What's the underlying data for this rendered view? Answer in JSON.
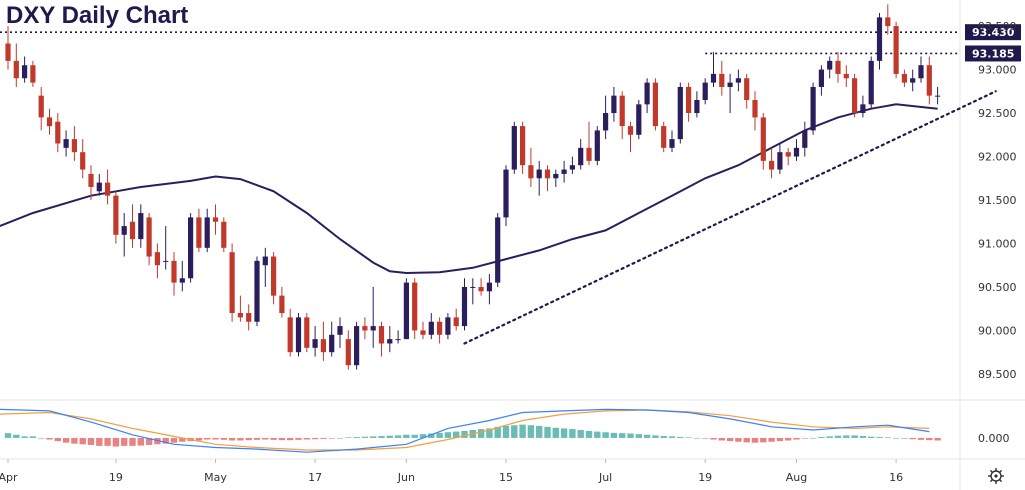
{
  "chart_data": {
    "type": "candlestick",
    "title": "DXY Daily Chart",
    "colors": {
      "up": "#2a1f5c",
      "down": "#c0392b",
      "ma": "#2a1f5c",
      "macd": "#3b82f6",
      "signal": "#f59e42",
      "hist_pos": "#3aa69b",
      "hist_neg": "#e05a5a"
    },
    "y_axis": {
      "ylim": [
        89.2,
        93.8
      ],
      "ticks": [
        "89.500",
        "90.000",
        "90.500",
        "91.000",
        "91.500",
        "92.000",
        "92.500",
        "93.000",
        "93.500"
      ]
    },
    "x_axis": {
      "ticks": [
        "Apr",
        "19",
        "May",
        "17",
        "Jun",
        "15",
        "Jul",
        "19",
        "Aug",
        "16"
      ],
      "tick_index": [
        0,
        13,
        25,
        37,
        48,
        60,
        72,
        84,
        95,
        107
      ]
    },
    "levels": [
      {
        "label": "93.430",
        "value": 93.43
      },
      {
        "label": "93.185",
        "value": 93.185
      }
    ],
    "trendline": {
      "from": [
        55,
        89.85
      ],
      "to": [
        119,
        92.75
      ]
    },
    "candles": [
      [
        93.3,
        93.1,
        93.5,
        93.0
      ],
      [
        93.1,
        92.9,
        93.3,
        92.8
      ],
      [
        92.9,
        93.05,
        93.15,
        92.85
      ],
      [
        93.05,
        92.85,
        93.1,
        92.8
      ],
      [
        92.7,
        92.45,
        92.8,
        92.3
      ],
      [
        92.45,
        92.35,
        92.55,
        92.25
      ],
      [
        92.4,
        92.15,
        92.5,
        92.05
      ],
      [
        92.1,
        92.2,
        92.3,
        92.0
      ],
      [
        92.2,
        92.05,
        92.35,
        91.95
      ],
      [
        92.05,
        91.85,
        92.2,
        91.75
      ],
      [
        91.8,
        91.65,
        91.9,
        91.5
      ],
      [
        91.6,
        91.7,
        91.8,
        91.55
      ],
      [
        91.7,
        91.55,
        91.85,
        91.45
      ],
      [
        91.55,
        91.1,
        91.6,
        91.0
      ],
      [
        91.1,
        91.2,
        91.35,
        90.85
      ],
      [
        91.25,
        91.05,
        91.45,
        90.95
      ],
      [
        91.05,
        91.35,
        91.45,
        90.95
      ],
      [
        91.3,
        90.85,
        91.35,
        90.75
      ],
      [
        90.9,
        90.75,
        91.0,
        90.6
      ],
      [
        90.8,
        90.8,
        91.2,
        90.7
      ],
      [
        90.8,
        90.55,
        90.9,
        90.4
      ],
      [
        90.55,
        90.6,
        90.8,
        90.45
      ],
      [
        90.6,
        91.3,
        91.35,
        90.55
      ],
      [
        91.3,
        90.95,
        91.4,
        90.9
      ],
      [
        90.95,
        91.3,
        91.4,
        90.9
      ],
      [
        91.3,
        91.25,
        91.45,
        91.1
      ],
      [
        91.25,
        90.95,
        91.3,
        90.9
      ],
      [
        90.9,
        90.2,
        91.0,
        90.1
      ],
      [
        90.2,
        90.15,
        90.4,
        90.1
      ],
      [
        90.2,
        90.1,
        90.3,
        90.0
      ],
      [
        90.1,
        90.8,
        90.85,
        90.05
      ],
      [
        90.75,
        90.85,
        90.95,
        90.5
      ],
      [
        90.85,
        90.4,
        90.9,
        90.3
      ],
      [
        90.4,
        90.2,
        90.5,
        90.15
      ],
      [
        90.15,
        89.75,
        90.25,
        89.7
      ],
      [
        89.75,
        90.15,
        90.2,
        89.7
      ],
      [
        90.15,
        89.8,
        90.2,
        89.75
      ],
      [
        89.8,
        89.9,
        90.05,
        89.7
      ],
      [
        89.9,
        89.75,
        90.1,
        89.65
      ],
      [
        89.75,
        89.95,
        90.1,
        89.7
      ],
      [
        89.95,
        90.05,
        90.15,
        89.8
      ],
      [
        89.9,
        89.6,
        90.0,
        89.55
      ],
      [
        89.6,
        90.05,
        90.1,
        89.55
      ],
      [
        90.05,
        90.0,
        90.15,
        89.9
      ],
      [
        90.0,
        90.05,
        90.5,
        89.8
      ],
      [
        90.05,
        89.85,
        90.1,
        89.7
      ],
      [
        89.85,
        89.9,
        90.05,
        89.75
      ],
      [
        89.9,
        89.9,
        90.0,
        89.85
      ],
      [
        89.9,
        90.55,
        90.6,
        89.9
      ],
      [
        90.55,
        90.0,
        90.6,
        89.9
      ],
      [
        90.0,
        89.95,
        90.1,
        89.9
      ],
      [
        89.95,
        90.1,
        90.2,
        89.9
      ],
      [
        90.1,
        89.95,
        90.15,
        89.85
      ],
      [
        89.95,
        90.15,
        90.2,
        89.9
      ],
      [
        90.15,
        90.05,
        90.25,
        90.0
      ],
      [
        90.05,
        90.5,
        90.6,
        90.0
      ],
      [
        90.5,
        90.5,
        90.6,
        90.3
      ],
      [
        90.5,
        90.45,
        90.6,
        90.4
      ],
      [
        90.45,
        90.55,
        90.65,
        90.3
      ],
      [
        90.55,
        91.3,
        91.35,
        90.5
      ],
      [
        91.3,
        91.85,
        91.9,
        91.2
      ],
      [
        91.85,
        92.35,
        92.4,
        91.8
      ],
      [
        92.35,
        91.9,
        92.4,
        91.8
      ],
      [
        91.9,
        91.75,
        92.1,
        91.65
      ],
      [
        91.75,
        91.85,
        91.95,
        91.55
      ],
      [
        91.85,
        91.75,
        91.9,
        91.6
      ],
      [
        91.75,
        91.8,
        91.85,
        91.65
      ],
      [
        91.8,
        91.85,
        91.95,
        91.7
      ],
      [
        91.85,
        91.9,
        92.0,
        91.8
      ],
      [
        91.9,
        92.1,
        92.2,
        91.85
      ],
      [
        92.1,
        91.95,
        92.4,
        91.9
      ],
      [
        91.95,
        92.3,
        92.35,
        91.9
      ],
      [
        92.3,
        92.5,
        92.7,
        92.2
      ],
      [
        92.5,
        92.7,
        92.8,
        92.4
      ],
      [
        92.7,
        92.35,
        92.75,
        92.2
      ],
      [
        92.35,
        92.25,
        92.4,
        92.05
      ],
      [
        92.25,
        92.6,
        92.65,
        92.2
      ],
      [
        92.6,
        92.85,
        92.9,
        92.5
      ],
      [
        92.85,
        92.35,
        92.9,
        92.3
      ],
      [
        92.35,
        92.1,
        92.4,
        92.05
      ],
      [
        92.1,
        92.2,
        92.3,
        92.05
      ],
      [
        92.2,
        92.8,
        92.85,
        92.15
      ],
      [
        92.8,
        92.5,
        92.85,
        92.4
      ],
      [
        92.5,
        92.65,
        92.75,
        92.45
      ],
      [
        92.65,
        92.85,
        92.9,
        92.6
      ],
      [
        92.85,
        92.95,
        93.2,
        92.8
      ],
      [
        92.95,
        92.8,
        93.1,
        92.7
      ],
      [
        92.8,
        92.85,
        92.95,
        92.5
      ],
      [
        92.85,
        92.9,
        93.0,
        92.75
      ],
      [
        92.9,
        92.65,
        92.95,
        92.55
      ],
      [
        92.65,
        92.45,
        92.75,
        92.3
      ],
      [
        92.45,
        91.95,
        92.5,
        91.85
      ],
      [
        91.95,
        91.85,
        92.1,
        91.75
      ],
      [
        91.85,
        92.05,
        92.15,
        91.8
      ],
      [
        92.05,
        92.0,
        92.1,
        91.9
      ],
      [
        92.0,
        92.1,
        92.2,
        91.95
      ],
      [
        92.1,
        92.3,
        92.4,
        92.0
      ],
      [
        92.3,
        92.8,
        92.85,
        92.25
      ],
      [
        92.8,
        93.0,
        93.05,
        92.7
      ],
      [
        93.0,
        93.1,
        93.15,
        92.9
      ],
      [
        93.1,
        92.95,
        93.2,
        92.85
      ],
      [
        92.95,
        92.9,
        93.05,
        92.8
      ],
      [
        92.9,
        92.5,
        92.95,
        92.45
      ],
      [
        92.5,
        92.6,
        92.7,
        92.45
      ],
      [
        92.6,
        93.1,
        93.15,
        92.55
      ],
      [
        93.1,
        93.6,
        93.65,
        93.0
      ],
      [
        93.6,
        93.5,
        93.75,
        93.4
      ],
      [
        93.5,
        92.95,
        93.55,
        92.9
      ],
      [
        92.95,
        92.85,
        93.0,
        92.8
      ],
      [
        92.85,
        92.9,
        93.0,
        92.75
      ],
      [
        92.9,
        93.05,
        93.15,
        92.85
      ],
      [
        93.05,
        92.7,
        93.15,
        92.6
      ],
      [
        92.7,
        92.7,
        92.8,
        92.6
      ]
    ],
    "ma": [
      [
        -1,
        91.2
      ],
      [
        3,
        91.35
      ],
      [
        10,
        91.55
      ],
      [
        16,
        91.65
      ],
      [
        22,
        91.72
      ],
      [
        25,
        91.77
      ],
      [
        28,
        91.74
      ],
      [
        32,
        91.6
      ],
      [
        36,
        91.35
      ],
      [
        40,
        91.05
      ],
      [
        44,
        90.78
      ],
      [
        46,
        90.68
      ],
      [
        48,
        90.66
      ],
      [
        52,
        90.67
      ],
      [
        56,
        90.72
      ],
      [
        60,
        90.82
      ],
      [
        64,
        90.92
      ],
      [
        68,
        91.05
      ],
      [
        72,
        91.15
      ],
      [
        76,
        91.35
      ],
      [
        80,
        91.55
      ],
      [
        84,
        91.75
      ],
      [
        88,
        91.9
      ],
      [
        92,
        92.1
      ],
      [
        96,
        92.3
      ],
      [
        100,
        92.45
      ],
      [
        104,
        92.55
      ],
      [
        107,
        92.6
      ],
      [
        112,
        92.55
      ]
    ],
    "macd": [
      [
        -1,
        0.9
      ],
      [
        5,
        0.85
      ],
      [
        10,
        0.5
      ],
      [
        15,
        0.1
      ],
      [
        20,
        -0.2
      ],
      [
        25,
        -0.3
      ],
      [
        30,
        -0.35
      ],
      [
        36,
        -0.45
      ],
      [
        42,
        -0.35
      ],
      [
        48,
        -0.2
      ],
      [
        53,
        0.3
      ],
      [
        58,
        0.55
      ],
      [
        62,
        0.8
      ],
      [
        67,
        0.85
      ],
      [
        72,
        0.9
      ],
      [
        77,
        0.88
      ],
      [
        82,
        0.8
      ],
      [
        87,
        0.6
      ],
      [
        92,
        0.35
      ],
      [
        97,
        0.25
      ],
      [
        102,
        0.35
      ],
      [
        106,
        0.4
      ],
      [
        111,
        0.2
      ]
    ],
    "signal": [
      [
        -1,
        0.75
      ],
      [
        5,
        0.8
      ],
      [
        10,
        0.6
      ],
      [
        15,
        0.3
      ],
      [
        20,
        0.05
      ],
      [
        25,
        -0.2
      ],
      [
        30,
        -0.3
      ],
      [
        36,
        -0.38
      ],
      [
        42,
        -0.38
      ],
      [
        48,
        -0.3
      ],
      [
        53,
        -0.05
      ],
      [
        58,
        0.25
      ],
      [
        62,
        0.55
      ],
      [
        67,
        0.75
      ],
      [
        72,
        0.85
      ],
      [
        77,
        0.88
      ],
      [
        82,
        0.82
      ],
      [
        87,
        0.7
      ],
      [
        92,
        0.5
      ],
      [
        97,
        0.35
      ],
      [
        102,
        0.3
      ],
      [
        106,
        0.35
      ],
      [
        111,
        0.3
      ]
    ],
    "hist": [
      0.15,
      0.1,
      0.05,
      0.05,
      0.0,
      -0.05,
      -0.1,
      -0.15,
      -0.18,
      -0.2,
      -0.22,
      -0.25,
      -0.25,
      -0.27,
      -0.25,
      -0.25,
      -0.24,
      -0.22,
      -0.2,
      -0.18,
      -0.15,
      -0.12,
      -0.1,
      -0.08,
      -0.05,
      -0.05,
      -0.06,
      -0.08,
      -0.08,
      -0.07,
      -0.06,
      -0.05,
      -0.06,
      -0.07,
      -0.07,
      -0.06,
      -0.05,
      -0.04,
      -0.03,
      -0.02,
      0.0,
      0.02,
      0.03,
      0.04,
      0.05,
      0.06,
      0.07,
      0.08,
      0.1,
      0.1,
      0.12,
      0.14,
      0.16,
      0.18,
      0.2,
      0.22,
      0.25,
      0.28,
      0.3,
      0.35,
      0.38,
      0.4,
      0.42,
      0.4,
      0.38,
      0.35,
      0.32,
      0.3,
      0.28,
      0.25,
      0.22,
      0.2,
      0.18,
      0.16,
      0.15,
      0.14,
      0.12,
      0.1,
      0.08,
      0.06,
      0.05,
      0.03,
      0.02,
      0.0,
      -0.02,
      -0.05,
      -0.08,
      -0.1,
      -0.12,
      -0.14,
      -0.15,
      -0.14,
      -0.12,
      -0.1,
      -0.08,
      -0.05,
      -0.02,
      0.0,
      0.03,
      0.05,
      0.07,
      0.08,
      0.08,
      0.06,
      0.04,
      0.03,
      0.02,
      0.0,
      -0.02,
      -0.04,
      -0.06,
      -0.07,
      -0.08
    ],
    "indicator_axis": {
      "ylim": [
        -0.6,
        1.1
      ],
      "tick": "0.000",
      "tick_value": 0
    }
  }
}
